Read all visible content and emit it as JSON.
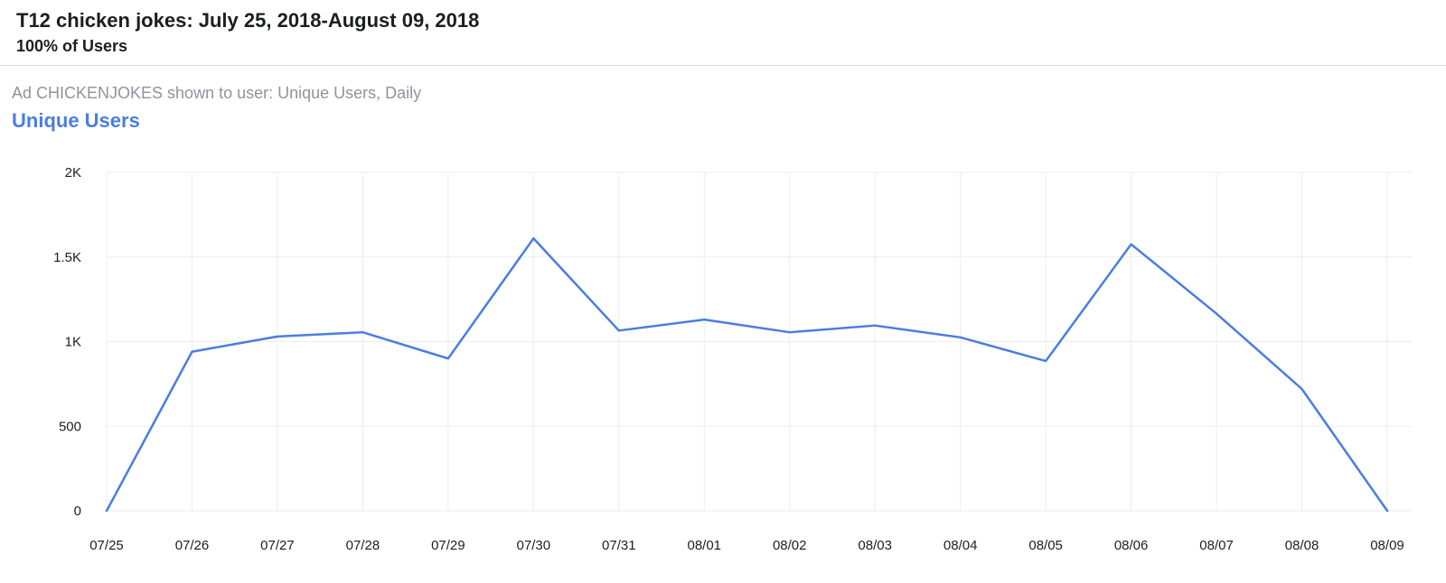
{
  "header": {
    "title": "T12 chicken jokes: July 25, 2018-August 09, 2018",
    "subtitle": "100% of Users"
  },
  "metric": {
    "description": "Ad CHICKENJOKES shown to user: Unique Users, Daily",
    "name": "Unique Users"
  },
  "colors": {
    "line": "#4a7de2",
    "grid": "#ebedf0"
  },
  "chart_data": {
    "type": "line",
    "categories": [
      "07/25",
      "07/26",
      "07/27",
      "07/28",
      "07/29",
      "07/30",
      "07/31",
      "08/01",
      "08/02",
      "08/03",
      "08/04",
      "08/05",
      "08/06",
      "08/07",
      "08/08",
      "08/09"
    ],
    "series": [
      {
        "values": [
          0,
          940,
          1030,
          1055,
          900,
          1610,
          1065,
          1130,
          1055,
          1095,
          1025,
          885,
          1575,
          1165,
          720,
          0
        ]
      }
    ],
    "ylim": [
      0,
      2000
    ],
    "yticks": [
      0,
      500,
      1000,
      1500,
      2000
    ],
    "ytick_labels": [
      "0",
      "500",
      "1K",
      "1.5K",
      "2K"
    ],
    "grid": true,
    "legend": "none"
  }
}
